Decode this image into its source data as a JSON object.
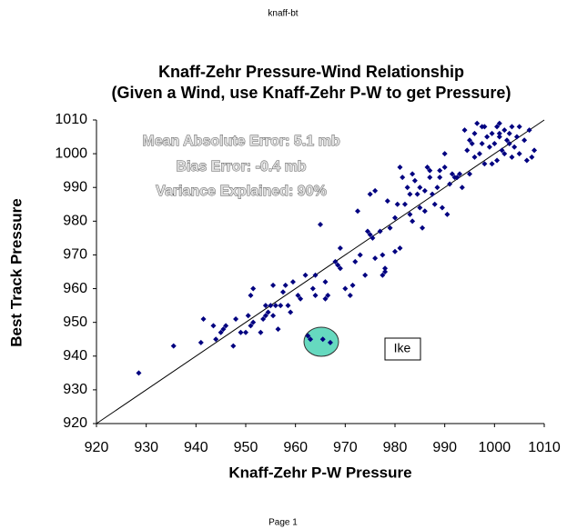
{
  "header": "knaff-bt",
  "footer": "Page 1",
  "chart_data": {
    "type": "scatter",
    "title": "Knaff-Zehr Pressure-Wind Relationship",
    "subtitle": "(Given a Wind, use Knaff-Zehr P-W to get Pressure)",
    "x_label": "Knaff-Zehr P-W Pressure",
    "y_label": "Best Track Pressure",
    "annotations": [
      "Mean Absolute Error:  5.1 mb",
      "Bias Error:  -0.4 mb",
      "Variance Explained:  90%"
    ],
    "highlight_label": "Ike",
    "color": "#000080",
    "line_color": "#000000",
    "reference_line": {
      "x": [
        920,
        1010
      ],
      "y": [
        920,
        1010
      ]
    },
    "xlim": [
      920,
      1010
    ],
    "ylim": [
      920,
      1010
    ],
    "xticks": [
      920,
      930,
      940,
      950,
      960,
      970,
      980,
      990,
      1000,
      1010
    ],
    "yticks": [
      920,
      930,
      940,
      950,
      960,
      970,
      980,
      990,
      1000,
      1010
    ],
    "x": [
      928.5,
      935.5,
      941,
      941.5,
      943.5,
      944,
      945,
      945.5,
      946,
      947.5,
      948,
      949,
      950,
      950.5,
      951,
      951.5,
      951,
      951.5,
      953,
      953.5,
      954,
      954,
      954.5,
      955,
      955.5,
      955.5,
      956,
      956.5,
      957,
      957.5,
      958,
      958.5,
      959,
      959.5,
      960.5,
      961,
      962,
      962.5,
      963,
      963.5,
      964,
      964,
      965,
      965.5,
      966,
      966.5,
      967,
      966,
      968,
      968.5,
      969,
      969,
      970,
      971,
      971.5,
      972,
      972.5,
      973,
      974,
      974.5,
      975,
      975,
      975.5,
      976,
      976,
      977,
      977.5,
      977.5,
      978,
      978,
      978.5,
      979,
      980,
      980,
      980.5,
      981,
      981,
      981.5,
      982,
      982.5,
      983,
      983,
      983.5,
      983.5,
      984,
      984.5,
      985,
      985,
      985.5,
      986,
      986.5,
      986,
      987,
      987.5,
      988,
      988.5,
      989,
      989,
      989.5,
      990,
      990.5,
      991,
      991.5,
      992,
      992.5,
      993,
      993.5,
      994,
      994.5,
      995,
      995,
      995.5,
      996,
      996.5,
      997,
      997.5,
      997.5,
      998,
      998.5,
      999,
      999.5,
      999.5,
      1000,
      1000.5,
      1000.5,
      1001,
      1001,
      1001.5,
      1002,
      1002,
      1002.5,
      1003,
      1003.5,
      1003.5,
      1004,
      1004.5,
      1005,
      1005,
      1006,
      1006.5,
      1007,
      1007.5,
      1008,
      1003,
      996,
      990,
      987,
      998,
      1001
    ],
    "values": [
      935,
      943,
      944,
      951,
      949,
      945,
      947,
      948,
      949,
      943,
      951,
      947,
      947,
      952,
      949,
      950,
      958,
      960,
      947,
      951,
      952,
      955,
      953,
      955,
      952,
      961,
      955,
      948,
      955,
      959,
      961,
      955,
      953,
      962,
      958,
      957,
      964,
      946,
      945,
      960,
      958,
      964,
      979,
      945,
      957,
      958,
      944,
      962,
      968,
      967,
      966,
      972,
      960,
      958,
      961,
      968,
      983,
      970,
      964,
      977,
      988,
      976,
      975,
      989,
      969,
      977,
      964,
      970,
      966,
      965,
      986,
      978,
      981,
      971,
      985,
      972,
      996,
      993,
      985,
      990,
      982,
      988,
      994,
      980,
      992,
      988,
      990,
      984,
      978,
      989,
      996,
      983,
      993,
      988,
      985,
      990,
      995,
      993,
      984,
      996,
      982,
      991,
      994,
      993,
      993,
      994,
      990,
      1007,
      1001,
      994,
      1004,
      1003,
      999,
      1009,
      1000,
      1008,
      1003,
      997,
      1005,
      1002,
      1006,
      997,
      1003,
      1008,
      998,
      1005,
      1009,
      1001,
      1007,
      1000,
      1004,
      1006,
      1008,
      999,
      1002,
      1005,
      1000,
      1008,
      1004,
      998,
      1007,
      999,
      1001,
      1003,
      1006,
      1000,
      995,
      1008,
      1006
    ]
  }
}
